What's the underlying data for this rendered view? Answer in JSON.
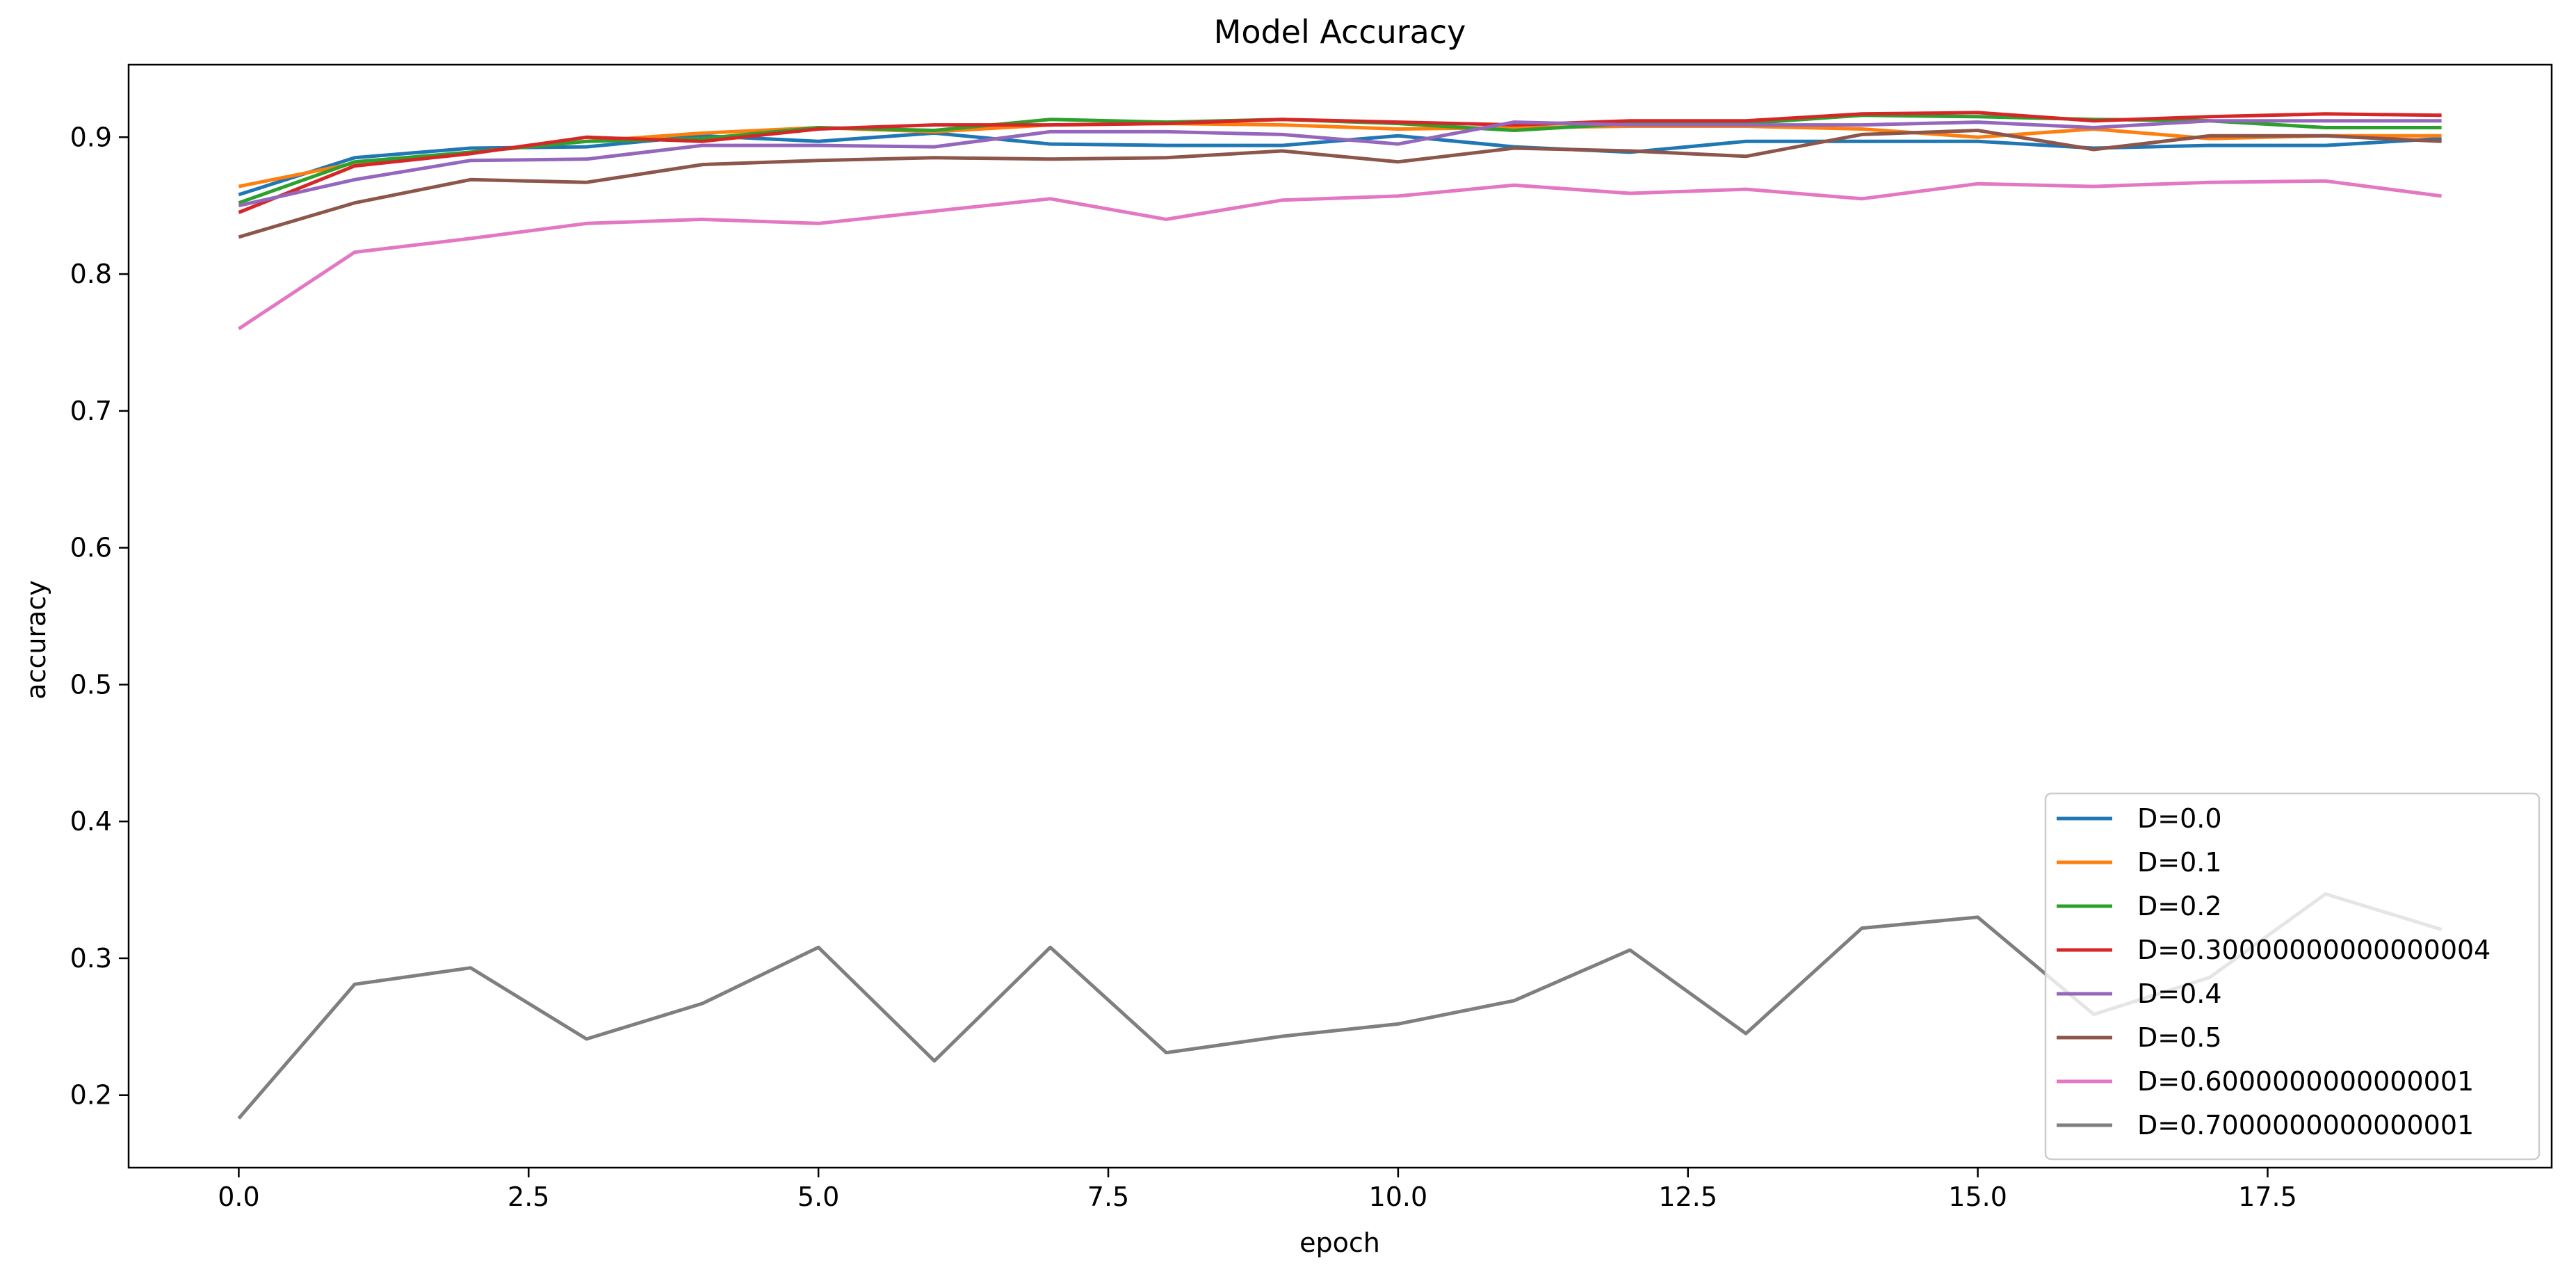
{
  "chart_data": {
    "type": "line",
    "title": "Model Accuracy",
    "xlabel": "epoch",
    "ylabel": "accuracy",
    "xlim": [
      -0.95,
      19.95
    ],
    "ylim": [
      0.147,
      0.953
    ],
    "xticks": [
      0,
      2.5,
      5,
      7.5,
      10,
      12.5,
      15,
      17.5
    ],
    "xtick_labels": [
      "0.0",
      "2.5",
      "5.0",
      "7.5",
      "10.0",
      "12.5",
      "15.0",
      "17.5"
    ],
    "yticks": [
      0.2,
      0.3,
      0.4,
      0.5,
      0.6,
      0.7,
      0.8,
      0.9
    ],
    "ytick_labels": [
      "0.2",
      "0.3",
      "0.4",
      "0.5",
      "0.6",
      "0.7",
      "0.8",
      "0.9"
    ],
    "grid": false,
    "legend_position": "lower-right",
    "x": [
      0,
      1,
      2,
      3,
      4,
      5,
      6,
      7,
      8,
      9,
      10,
      11,
      12,
      13,
      14,
      15,
      16,
      17,
      18,
      19
    ],
    "series": [
      {
        "name": "D=0.0",
        "color": "#1f77b4",
        "values": [
          0.858,
          0.885,
          0.892,
          0.893,
          0.901,
          0.897,
          0.903,
          0.895,
          0.894,
          0.894,
          0.901,
          0.893,
          0.889,
          0.897,
          0.897,
          0.897,
          0.892,
          0.894,
          0.894,
          0.899
        ]
      },
      {
        "name": "D=0.1",
        "color": "#ff7f0e",
        "values": [
          0.864,
          0.881,
          0.889,
          0.897,
          0.903,
          0.907,
          0.904,
          0.909,
          0.91,
          0.909,
          0.906,
          0.907,
          0.908,
          0.908,
          0.906,
          0.9,
          0.906,
          0.899,
          0.901,
          0.901
        ]
      },
      {
        "name": "D=0.2",
        "color": "#2ca02c",
        "values": [
          0.852,
          0.882,
          0.889,
          0.897,
          0.899,
          0.907,
          0.905,
          0.913,
          0.911,
          0.913,
          0.91,
          0.905,
          0.91,
          0.91,
          0.916,
          0.915,
          0.913,
          0.912,
          0.907,
          0.907
        ]
      },
      {
        "name": "D=0.30000000000000004",
        "color": "#d62728",
        "values": [
          0.845,
          0.879,
          0.888,
          0.9,
          0.897,
          0.906,
          0.909,
          0.909,
          0.91,
          0.913,
          0.911,
          0.909,
          0.912,
          0.912,
          0.917,
          0.918,
          0.912,
          0.915,
          0.917,
          0.916
        ]
      },
      {
        "name": "D=0.4",
        "color": "#9467bd",
        "values": [
          0.85,
          0.869,
          0.883,
          0.884,
          0.894,
          0.894,
          0.893,
          0.904,
          0.904,
          0.902,
          0.895,
          0.911,
          0.909,
          0.909,
          0.909,
          0.911,
          0.907,
          0.912,
          0.912,
          0.912
        ]
      },
      {
        "name": "D=0.5",
        "color": "#8c564b",
        "values": [
          0.827,
          0.852,
          0.869,
          0.867,
          0.88,
          0.883,
          0.885,
          0.884,
          0.885,
          0.89,
          0.882,
          0.892,
          0.89,
          0.886,
          0.902,
          0.905,
          0.891,
          0.901,
          0.901,
          0.897
        ]
      },
      {
        "name": "D=0.6000000000000001",
        "color": "#e377c2",
        "values": [
          0.76,
          0.816,
          0.826,
          0.837,
          0.84,
          0.837,
          0.846,
          0.855,
          0.84,
          0.854,
          0.857,
          0.865,
          0.859,
          0.862,
          0.855,
          0.866,
          0.864,
          0.867,
          0.868,
          0.857
        ]
      },
      {
        "name": "D=0.7000000000000001",
        "color": "#7f7f7f",
        "values": [
          0.183,
          0.281,
          0.293,
          0.241,
          0.267,
          0.308,
          0.225,
          0.308,
          0.231,
          0.243,
          0.252,
          0.269,
          0.306,
          0.245,
          0.322,
          0.33,
          0.259,
          0.286,
          0.347,
          0.321
        ]
      }
    ]
  }
}
